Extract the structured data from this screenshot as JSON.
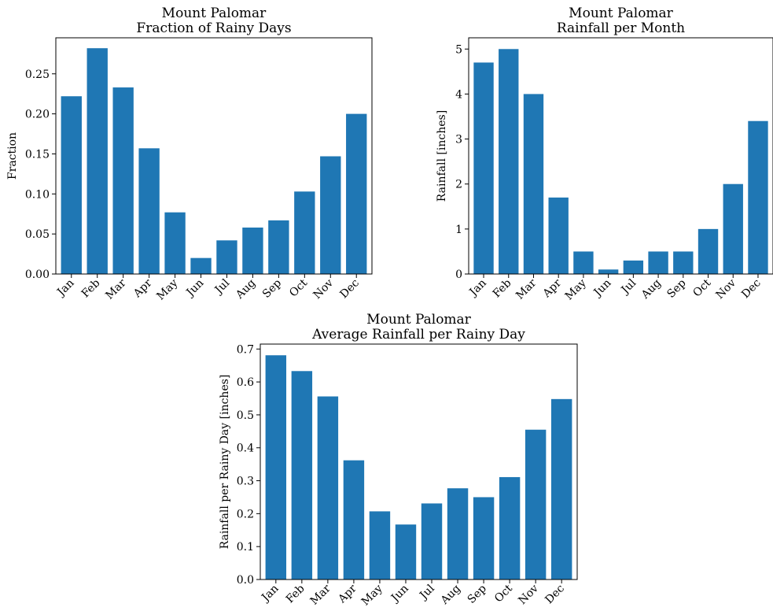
{
  "figure": {
    "background": "#ffffff",
    "bar_color": "#1f77b4"
  },
  "chart_data": [
    {
      "type": "bar",
      "title": "Mount Palomar\nFraction of Rainy Days",
      "xlabel": "",
      "ylabel": "Fraction",
      "categories": [
        "Jan",
        "Feb",
        "Mar",
        "Apr",
        "May",
        "Jun",
        "Jul",
        "Aug",
        "Sep",
        "Oct",
        "Nov",
        "Dec"
      ],
      "values": [
        0.222,
        0.282,
        0.233,
        0.157,
        0.077,
        0.02,
        0.042,
        0.058,
        0.067,
        0.103,
        0.147,
        0.2
      ],
      "ylim": [
        0,
        0.295
      ],
      "yticks": [
        0,
        0.05,
        0.1,
        0.15,
        0.2,
        0.25
      ],
      "ytick_labels": [
        "0.00",
        "0.05",
        "0.10",
        "0.15",
        "0.20",
        "0.25"
      ],
      "grid": false,
      "color": "#1f77b4"
    },
    {
      "type": "bar",
      "title": "Mount Palomar\nRainfall per Month",
      "xlabel": "",
      "ylabel": "Rainfall [inches]",
      "categories": [
        "Jan",
        "Feb",
        "Mar",
        "Apr",
        "May",
        "Jun",
        "Jul",
        "Aug",
        "Sep",
        "Oct",
        "Nov",
        "Dec"
      ],
      "values": [
        4.7,
        5.0,
        4.0,
        1.7,
        0.5,
        0.1,
        0.3,
        0.5,
        0.5,
        1.0,
        2.0,
        3.4
      ],
      "ylim": [
        0,
        5.25
      ],
      "yticks": [
        0,
        1,
        2,
        3,
        4,
        5
      ],
      "ytick_labels": [
        "0",
        "1",
        "2",
        "3",
        "4",
        "5"
      ],
      "grid": false,
      "color": "#1f77b4"
    },
    {
      "type": "bar",
      "title": "Mount Palomar\nAverage Rainfall per Rainy Day",
      "xlabel": "",
      "ylabel": "Rainfall per Rainy Day [inches]",
      "categories": [
        "Jan",
        "Feb",
        "Mar",
        "Apr",
        "May",
        "Jun",
        "Jul",
        "Aug",
        "Sep",
        "Oct",
        "Nov",
        "Dec"
      ],
      "values": [
        0.681,
        0.633,
        0.556,
        0.362,
        0.207,
        0.167,
        0.231,
        0.277,
        0.25,
        0.311,
        0.455,
        0.548
      ],
      "ylim": [
        0,
        0.715
      ],
      "yticks": [
        0,
        0.1,
        0.2,
        0.3,
        0.4,
        0.5,
        0.6,
        0.7
      ],
      "ytick_labels": [
        "0.0",
        "0.1",
        "0.2",
        "0.3",
        "0.4",
        "0.5",
        "0.6",
        "0.7"
      ],
      "grid": false,
      "color": "#1f77b4"
    }
  ]
}
